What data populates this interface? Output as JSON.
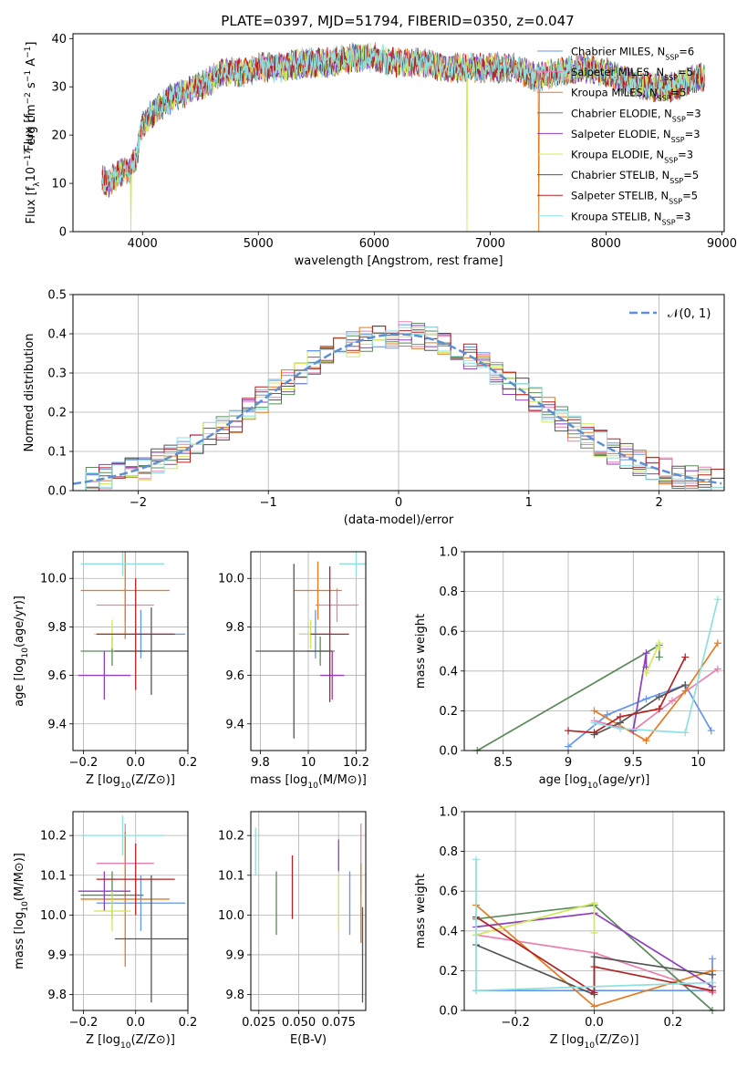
{
  "title": "PLATE=0397, MJD=51794, FIBERID=0350, z=0.047",
  "colors": {
    "c0": "#6495ed",
    "c1": "#e57a1e",
    "c2": "#8e3fbf",
    "c3": "#5a8a5a",
    "c4": "#8e3fbf",
    "c5": "#cfe85a",
    "c6": "#555555",
    "c7": "#b22222",
    "c8": "#8ee0e0",
    "c9": "#e87fb0",
    "c10": "#a0d030"
  },
  "chart_data": [
    {
      "id": "spectrum",
      "type": "line",
      "xlabel": "wavelength [Angstrom, rest frame]",
      "ylabel": "Flux [f",
      "ylabel_parts": [
        "Flux [f",
        "λ",
        "10",
        "−17",
        " erg cm",
        "−2",
        " s",
        "−1",
        " A",
        "−1",
        "]"
      ],
      "xlim": [
        3400,
        9020
      ],
      "ylim": [
        0,
        41
      ],
      "xticks": [
        4000,
        5000,
        6000,
        7000,
        8000,
        9000
      ],
      "yticks": [
        0,
        10,
        20,
        30,
        40
      ],
      "continuum_nodes": {
        "x": [
          3650,
          3700,
          3800,
          3900,
          3950,
          4000,
          4100,
          4200,
          4300,
          4500,
          4700,
          4900,
          5000,
          5200,
          5400,
          5600,
          5800,
          6000,
          6200,
          6400,
          6600,
          6800,
          7000,
          7200,
          7400,
          7600,
          7800,
          8000,
          8200,
          8400,
          8600,
          8800
        ],
        "y": [
          11,
          10,
          12,
          13,
          16,
          22,
          25,
          27,
          28,
          30,
          33,
          33,
          34,
          34,
          35,
          35,
          36,
          36,
          35,
          35,
          34,
          34,
          34,
          34,
          32,
          33,
          34,
          33,
          31,
          30,
          30,
          32
        ]
      },
      "dropouts": [
        {
          "x": 3900,
          "series": "Kroupa ELODIE"
        },
        {
          "x": 6800,
          "series": "Kroupa ELODIE"
        },
        {
          "x": 7420,
          "series": "Kroupa MILES"
        }
      ],
      "legend_position": "upper-right",
      "legend": [
        {
          "label": "Chabrier MILES, N",
          "sub": "SSP",
          "suffix": "=6",
          "color": "#6495ed"
        },
        {
          "label": "Salpeter MILES, N",
          "sub": "SSP",
          "suffix": "=5",
          "color": "#e87fb0"
        },
        {
          "label": "Kroupa MILES, N",
          "sub": "SSP",
          "suffix": "=5",
          "color": "#e57a1e"
        },
        {
          "label": "Chabrier ELODIE, N",
          "sub": "SSP",
          "suffix": "=3",
          "color": "#5a8a5a"
        },
        {
          "label": "Salpeter ELODIE, N",
          "sub": "SSP",
          "suffix": "=3",
          "color": "#8e3fbf"
        },
        {
          "label": "Kroupa ELODIE, N",
          "sub": "SSP",
          "suffix": "=3",
          "color": "#cfe85a"
        },
        {
          "label": "Chabrier STELIB, N",
          "sub": "SSP",
          "suffix": "=5",
          "color": "#555555"
        },
        {
          "label": "Salpeter STELIB, N",
          "sub": "SSP",
          "suffix": "=5",
          "color": "#b22222"
        },
        {
          "label": "Kroupa STELIB, N",
          "sub": "SSP",
          "suffix": "=3",
          "color": "#8ee0e0"
        }
      ]
    },
    {
      "id": "residuals",
      "type": "line",
      "xlabel": "(data-model)/error",
      "ylabel": "Normed distribution",
      "xlim": [
        -2.5,
        2.5
      ],
      "ylim": [
        0,
        0.5
      ],
      "xticks": [
        -2,
        -1,
        0,
        1,
        2
      ],
      "xticklabels": [
        "−2",
        "−1",
        "0",
        "1",
        "2"
      ],
      "yticks": [
        0.0,
        0.1,
        0.2,
        0.3,
        0.4,
        0.5
      ],
      "grid": true,
      "bin_width": 0.1,
      "reference": {
        "label": "𝒩(0, 1)",
        "mean": 0,
        "sigma": 1,
        "color": "#5b8fd6"
      },
      "legend_position": "upper-right",
      "series": [
        {
          "name": "Chabrier MILES",
          "color": "#6495ed"
        },
        {
          "name": "Salpeter MILES",
          "color": "#e87fb0"
        },
        {
          "name": "Kroupa MILES",
          "color": "#e57a1e"
        },
        {
          "name": "Chabrier ELODIE",
          "color": "#5a8a5a"
        },
        {
          "name": "Salpeter ELODIE",
          "color": "#8e3fbf"
        },
        {
          "name": "Kroupa ELODIE",
          "color": "#cfe85a"
        },
        {
          "name": "Chabrier STELIB",
          "color": "#555555"
        },
        {
          "name": "Salpeter STELIB",
          "color": "#b22222"
        },
        {
          "name": "Kroupa STELIB",
          "color": "#8ee0e0"
        }
      ]
    },
    {
      "id": "age_vs_Z",
      "type": "scatter",
      "xlabel": "Z [log10(Z/Z⊙)]",
      "ylabel": "age  [log10(age/yr)]",
      "xlim": [
        -0.24,
        0.2
      ],
      "ylim": [
        9.29,
        10.11
      ],
      "xticks": [
        -0.2,
        0.0,
        0.2
      ],
      "xticklabels": [
        "−0.2",
        "0.0",
        "0.2"
      ],
      "yticks": [
        9.4,
        9.6,
        9.8,
        10.0
      ],
      "grid": true,
      "points": [
        {
          "x": 0.02,
          "y": 9.77,
          "xerr": 0.17,
          "yerr": 0.1,
          "color": "#6495ed"
        },
        {
          "x": -0.04,
          "y": 9.89,
          "xerr": 0.11,
          "yerr": 0.07,
          "color": "#e87fb0"
        },
        {
          "x": -0.04,
          "y": 9.95,
          "xerr": 0.17,
          "yerr": 0.2,
          "color": "#e57a1e"
        },
        {
          "x": -0.09,
          "y": 9.7,
          "xerr": 0.12,
          "yerr": 0.06,
          "color": "#5a8a5a"
        },
        {
          "x": -0.12,
          "y": 9.6,
          "xerr": 0.1,
          "yerr": 0.1,
          "color": "#8e3fbf"
        },
        {
          "x": -0.09,
          "y": 9.77,
          "xerr": 0.07,
          "yerr": 0.06,
          "color": "#cfe85a"
        },
        {
          "x": 0.06,
          "y": 9.7,
          "xerr": 0.14,
          "yerr": 0.18,
          "color": "#555555"
        },
        {
          "x": 0.0,
          "y": 9.77,
          "xerr": 0.15,
          "yerr": 0.23,
          "color": "#b22222"
        },
        {
          "x": -0.05,
          "y": 10.06,
          "xerr": 0.16,
          "yerr": 0.05,
          "color": "#8ee0e0"
        }
      ]
    },
    {
      "id": "age_vs_mass",
      "type": "scatter",
      "xlabel": "mass [log10(M/M⊙)]",
      "ylabel": "",
      "xlim": [
        9.76,
        10.24
      ],
      "ylim": [
        9.29,
        10.11
      ],
      "xticks": [
        9.8,
        10.0,
        10.2
      ],
      "yticks": [
        9.4,
        9.6,
        9.8,
        10.0
      ],
      "grid": true,
      "points": [
        {
          "x": 10.03,
          "y": 9.77,
          "xerr": 0.07,
          "yerr": 0.1,
          "color": "#6495ed"
        },
        {
          "x": 10.12,
          "y": 9.89,
          "xerr": 0.09,
          "yerr": 0.07,
          "color": "#e87fb0"
        },
        {
          "x": 10.04,
          "y": 9.95,
          "xerr": 0.1,
          "yerr": 0.12,
          "color": "#e57a1e"
        },
        {
          "x": 10.05,
          "y": 9.7,
          "xerr": 0.06,
          "yerr": 0.06,
          "color": "#5a8a5a"
        },
        {
          "x": 10.1,
          "y": 9.6,
          "xerr": 0.05,
          "yerr": 0.1,
          "color": "#8e3fbf"
        },
        {
          "x": 10.01,
          "y": 9.77,
          "xerr": 0.05,
          "yerr": 0.06,
          "color": "#cfe85a"
        },
        {
          "x": 9.94,
          "y": 9.7,
          "xerr": 0.16,
          "yerr": 0.36,
          "color": "#555555"
        },
        {
          "x": 10.09,
          "y": 9.77,
          "xerr": 0.08,
          "yerr": 0.28,
          "color": "#b22222"
        },
        {
          "x": 10.2,
          "y": 10.06,
          "xerr": 0.07,
          "yerr": 0.05,
          "color": "#8ee0e0"
        }
      ]
    },
    {
      "id": "massweight_vs_age",
      "type": "line",
      "xlabel": "age  [log10(age/yr)]",
      "ylabel": "mass weight",
      "xlim": [
        8.2,
        10.2
      ],
      "ylim": [
        0,
        1
      ],
      "xticks": [
        8.5,
        9.0,
        9.5,
        10.0
      ],
      "yticks": [
        0.0,
        0.2,
        0.4,
        0.6,
        0.8,
        1.0
      ],
      "grid": true,
      "series": [
        {
          "color": "#6495ed",
          "x": [
            9.0,
            9.3,
            9.6,
            9.9,
            10.1
          ],
          "y": [
            0.02,
            0.18,
            0.26,
            0.33,
            0.1
          ]
        },
        {
          "color": "#e87fb0",
          "x": [
            9.2,
            9.5,
            9.8,
            10.15
          ],
          "y": [
            0.15,
            0.1,
            0.25,
            0.41
          ]
        },
        {
          "color": "#e57a1e",
          "x": [
            9.2,
            9.6,
            9.9,
            10.15
          ],
          "y": [
            0.2,
            0.05,
            0.3,
            0.54
          ]
        },
        {
          "color": "#5a8a5a",
          "x": [
            8.3,
            9.7,
            9.7
          ],
          "y": [
            0.0,
            0.53,
            0.47
          ]
        },
        {
          "color": "#8e3fbf",
          "x": [
            9.5,
            9.6,
            9.6
          ],
          "y": [
            0.1,
            0.49,
            0.42
          ]
        },
        {
          "color": "#cfe85a",
          "x": [
            9.6,
            9.7,
            9.7
          ],
          "y": [
            0.39,
            0.54,
            0.52
          ]
        },
        {
          "color": "#555555",
          "x": [
            9.2,
            9.4,
            9.7,
            9.9
          ],
          "y": [
            0.08,
            0.14,
            0.27,
            0.33
          ]
        },
        {
          "color": "#b22222",
          "x": [
            9.0,
            9.2,
            9.4,
            9.7,
            9.9
          ],
          "y": [
            0.1,
            0.09,
            0.17,
            0.21,
            0.47
          ]
        },
        {
          "color": "#8ee0e0",
          "x": [
            9.2,
            9.4,
            9.9,
            10.15
          ],
          "y": [
            0.14,
            0.11,
            0.09,
            0.76
          ]
        }
      ]
    },
    {
      "id": "mass_vs_Z",
      "type": "scatter",
      "xlabel": "Z [log10(Z/Z⊙)]",
      "ylabel": "mass [log10(M/M⊙)]",
      "xlim": [
        -0.24,
        0.2
      ],
      "ylim": [
        9.76,
        10.26
      ],
      "xticks": [
        -0.2,
        0.0,
        0.2
      ],
      "xticklabels": [
        "−0.2",
        "0.0",
        "0.2"
      ],
      "yticks": [
        9.8,
        9.9,
        10.0,
        10.1,
        10.2
      ],
      "grid": true,
      "points": [
        {
          "x": 0.02,
          "y": 10.03,
          "xerr": 0.17,
          "yerr": 0.07,
          "color": "#6495ed"
        },
        {
          "x": -0.04,
          "y": 10.13,
          "xerr": 0.11,
          "yerr": 0.1,
          "color": "#e87fb0"
        },
        {
          "x": -0.04,
          "y": 10.04,
          "xerr": 0.17,
          "yerr": 0.17,
          "color": "#e57a1e"
        },
        {
          "x": -0.09,
          "y": 10.05,
          "xerr": 0.12,
          "yerr": 0.06,
          "color": "#5a8a5a"
        },
        {
          "x": -0.12,
          "y": 10.06,
          "xerr": 0.1,
          "yerr": 0.05,
          "color": "#8e3fbf"
        },
        {
          "x": -0.09,
          "y": 10.01,
          "xerr": 0.07,
          "yerr": 0.05,
          "color": "#cfe85a"
        },
        {
          "x": 0.06,
          "y": 9.94,
          "xerr": 0.14,
          "yerr": 0.16,
          "color": "#555555"
        },
        {
          "x": 0.0,
          "y": 10.09,
          "xerr": 0.15,
          "yerr": 0.09,
          "color": "#b22222"
        },
        {
          "x": -0.05,
          "y": 10.2,
          "xerr": 0.16,
          "yerr": 0.05,
          "color": "#8ee0e0"
        }
      ]
    },
    {
      "id": "mass_vs_ebv",
      "type": "scatter",
      "xlabel": "E(B-V)",
      "ylabel": "",
      "xlim": [
        0.02,
        0.092
      ],
      "ylim": [
        9.76,
        10.26
      ],
      "xticks": [
        0.025,
        0.05,
        0.075
      ],
      "xticklabels": [
        "0.025",
        "0.050",
        "0.075"
      ],
      "yticks": [
        9.8,
        9.9,
        10.0,
        10.1,
        10.2
      ],
      "grid": true,
      "points": [
        {
          "x": 0.082,
          "y": 10.03,
          "yerr": 0.08,
          "color": "#6495ed"
        },
        {
          "x": 0.089,
          "y": 10.14,
          "yerr": 0.09,
          "color": "#e87fb0"
        },
        {
          "x": 0.089,
          "y": 10.03,
          "yerr": 0.1,
          "color": "#e57a1e"
        },
        {
          "x": 0.036,
          "y": 10.03,
          "yerr": 0.08,
          "color": "#5a8a5a"
        },
        {
          "x": 0.075,
          "y": 10.15,
          "yerr": 0.04,
          "color": "#8e3fbf"
        },
        {
          "x": 0.075,
          "y": 10.03,
          "yerr": 0.07,
          "color": "#cfe85a"
        },
        {
          "x": 0.09,
          "y": 9.9,
          "yerr": 0.12,
          "color": "#555555"
        },
        {
          "x": 0.046,
          "y": 10.07,
          "yerr": 0.08,
          "color": "#b22222"
        },
        {
          "x": 0.023,
          "y": 10.16,
          "yerr": 0.06,
          "color": "#8ee0e0"
        }
      ]
    },
    {
      "id": "massweight_vs_Z",
      "type": "line",
      "xlabel": "Z [log10(Z/Z⊙)]",
      "ylabel": "mass weight",
      "xlim": [
        -0.33,
        0.33
      ],
      "ylim": [
        0,
        1
      ],
      "xticks": [
        -0.2,
        0.0,
        0.2
      ],
      "xticklabels": [
        "−0.2",
        "0.0",
        "0.2"
      ],
      "yticks": [
        0.0,
        0.2,
        0.4,
        0.6,
        0.8,
        1.0
      ],
      "grid": true,
      "series": [
        {
          "color": "#6495ed",
          "x": [
            -0.3,
            0.0,
            0.3,
            0.3
          ],
          "y": [
            0.1,
            0.1,
            0.1,
            0.26
          ]
        },
        {
          "color": "#e87fb0",
          "x": [
            -0.3,
            0.0,
            0.3
          ],
          "y": [
            0.38,
            0.29,
            0.09
          ]
        },
        {
          "color": "#e57a1e",
          "x": [
            -0.3,
            0.0,
            0.3
          ],
          "y": [
            0.53,
            0.02,
            0.2
          ]
        },
        {
          "color": "#5a8a5a",
          "x": [
            -0.3,
            0.0,
            0.3
          ],
          "y": [
            0.46,
            0.53,
            0.0
          ]
        },
        {
          "color": "#8e3fbf",
          "x": [
            -0.3,
            0.0,
            0.3
          ],
          "y": [
            0.42,
            0.49,
            0.12
          ]
        },
        {
          "color": "#cfe85a",
          "x": [
            -0.3,
            0.0,
            0.0
          ],
          "y": [
            0.38,
            0.54,
            0.39
          ]
        },
        {
          "color": "#555555",
          "x": [
            -0.3,
            0.0,
            0.0,
            0.3
          ],
          "y": [
            0.33,
            0.08,
            0.27,
            0.18
          ]
        },
        {
          "color": "#b22222",
          "x": [
            -0.3,
            0.0,
            0.0,
            0.3
          ],
          "y": [
            0.47,
            0.09,
            0.22,
            0.1
          ]
        },
        {
          "color": "#8ee0e0",
          "x": [
            -0.3,
            -0.3,
            0.3
          ],
          "y": [
            0.76,
            0.1,
            0.14
          ]
        }
      ]
    }
  ]
}
